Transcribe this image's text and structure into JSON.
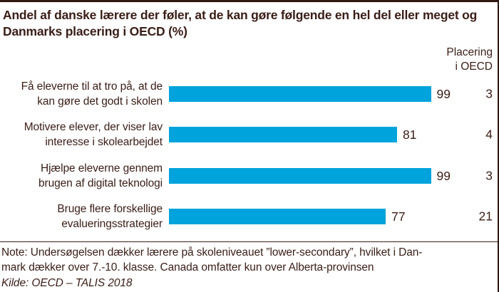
{
  "title": {
    "lines": [
      "Andel af danske lærere der føler, at de kan gøre følgende en hel del eller meget og",
      "Danmarks placering i OECD (%)"
    ]
  },
  "rank_header": {
    "lines": [
      "Placering",
      "i OECD"
    ]
  },
  "chart_data": {
    "type": "bar",
    "orientation": "horizontal",
    "title": "Andel af danske lærere der føler, at de kan gøre følgende en hel del eller meget og Danmarks placering i OECD (%)",
    "categories": [
      "Få eleverne til at tro på, at de kan gøre det godt i skolen",
      "Motivere elever, der viser lav interesse i skolearbejdet",
      "Hjælpe eleverne gennem brugen af digital teknologi",
      "Bruge flere forskellige evalueringsstrategier"
    ],
    "category_lines": [
      [
        "Få eleverne til at tro på, at de",
        "kan gøre det godt i skolen"
      ],
      [
        "Motivere elever, der viser lav",
        "interesse i skolearbejdet"
      ],
      [
        "Hjælpe eleverne gennem",
        "brugen af digital teknologi"
      ],
      [
        "Bruge flere forskellige",
        "evalueringsstrategier"
      ]
    ],
    "values": [
      99,
      81,
      99,
      77
    ],
    "oecd_rank": [
      3,
      4,
      3,
      21
    ],
    "xlim": [
      0,
      100
    ],
    "value_labels_shown": true,
    "rank_column_header": "Placering i OECD",
    "bar_color": "#00a3dc",
    "grid": false,
    "legend": "none"
  },
  "colors": {
    "bar": "#00a3dc",
    "text": "#3a1d16",
    "border": "#2f1810"
  },
  "note": {
    "lines": [
      "Note: Undersøgelsen dækker lærere på skoleniveauet ”lower-secondary”, hvilket i Dan-",
      "mark dækker over 7.-10. klasse. Canada omfatter kun over Alberta-provinsen"
    ],
    "source": "Kilde: OECD – TALIS 2018"
  }
}
